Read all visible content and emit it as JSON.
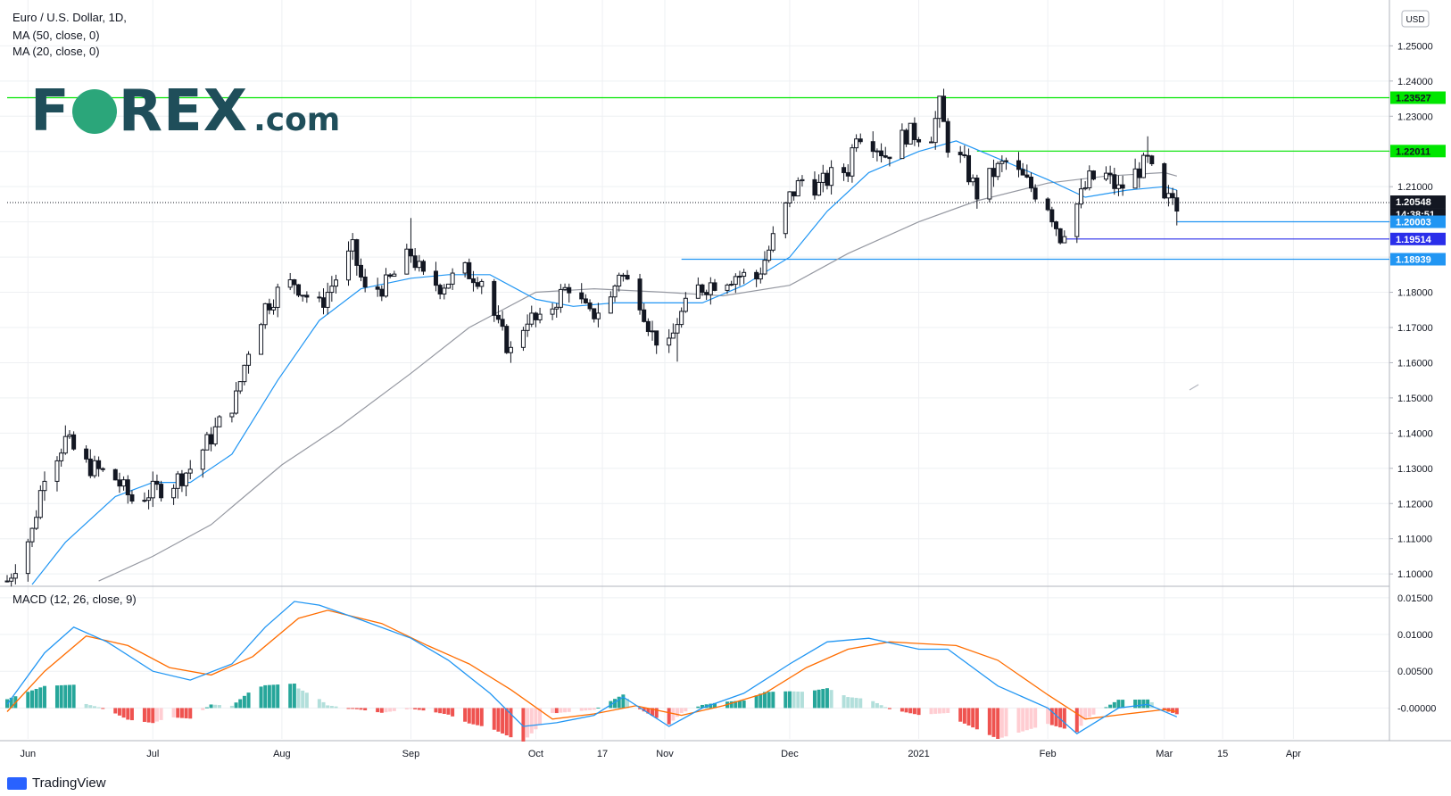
{
  "legend": {
    "title": "Euro / U.S. Dollar, 1D,",
    "ma50": "MA (50, close, 0)",
    "ma20": "MA (20, close, 0)",
    "macd": "MACD (12, 26, close, 9)"
  },
  "logo": {
    "text_left": "F",
    "text_right": "REX",
    "suffix": ".com"
  },
  "currency_badge": "USD",
  "footer": {
    "brand": "TradingView"
  },
  "price_tags": [
    {
      "label": "1.23527",
      "value": 1.23527,
      "color": "#00e600",
      "text_color": "#131722"
    },
    {
      "label": "1.22011",
      "value": 1.22011,
      "color": "#00e600",
      "text_color": "#131722"
    },
    {
      "label": "1.20548",
      "value": 1.20548,
      "color": "#131722",
      "text_color": "#ffffff"
    },
    {
      "label": "14:38:51",
      "value": 1.20548,
      "color": "#131722",
      "text_color": "#ffffff"
    },
    {
      "label": "1.20003",
      "value": 1.20003,
      "color": "#2196f3",
      "text_color": "#ffffff"
    },
    {
      "label": "1.19514",
      "value": 1.19514,
      "color": "#2a2eea",
      "text_color": "#ffffff"
    },
    {
      "label": "1.18939",
      "value": 1.18939,
      "color": "#2196f3",
      "text_color": "#ffffff"
    }
  ],
  "chart_data": {
    "type": "candlestick",
    "instrument": "Euro / U.S. Dollar",
    "timeframe": "1D",
    "y_ticks": [
      "1.25000",
      "1.24000",
      "1.23000",
      "1.22000",
      "1.21000",
      "1.20000",
      "1.19000",
      "1.18000",
      "1.17000",
      "1.16000",
      "1.15000",
      "1.14000",
      "1.13000",
      "1.12000",
      "1.11000",
      "1.10000"
    ],
    "ylim": [
      1.097,
      1.2615
    ],
    "x_ticks": [
      {
        "label": "Jun",
        "date": "2020-06-01"
      },
      {
        "label": "Jul",
        "date": "2020-07-01"
      },
      {
        "label": "Aug",
        "date": "2020-08-01"
      },
      {
        "label": "Sep",
        "date": "2020-09-01"
      },
      {
        "label": "Oct",
        "date": "2020-10-01"
      },
      {
        "label": "17",
        "date": "2020-10-17"
      },
      {
        "label": "Nov",
        "date": "2020-11-01"
      },
      {
        "label": "Dec",
        "date": "2020-12-01"
      },
      {
        "label": "2021",
        "date": "2021-01-01"
      },
      {
        "label": "Feb",
        "date": "2021-02-01"
      },
      {
        "label": "Mar",
        "date": "2021-03-01"
      },
      {
        "label": "15",
        "date": "2021-03-15"
      },
      {
        "label": "Apr",
        "date": "2021-04-01"
      }
    ],
    "xlim": [
      "2020-05-27",
      "2021-04-23"
    ],
    "close_path": [
      [
        "2020-05-27",
        1.098
      ],
      [
        "2020-06-02",
        1.112
      ],
      [
        "2020-06-05",
        1.129
      ],
      [
        "2020-06-10",
        1.138
      ],
      [
        "2020-06-15",
        1.131
      ],
      [
        "2020-06-22",
        1.127
      ],
      [
        "2020-06-26",
        1.121
      ],
      [
        "2020-06-30",
        1.123
      ],
      [
        "2020-07-06",
        1.126
      ],
      [
        "2020-07-10",
        1.13
      ],
      [
        "2020-07-15",
        1.139
      ],
      [
        "2020-07-21",
        1.15
      ],
      [
        "2020-07-24",
        1.164
      ],
      [
        "2020-07-28",
        1.176
      ],
      [
        "2020-07-31",
        1.18
      ],
      [
        "2020-08-04",
        1.183
      ],
      [
        "2020-08-07",
        1.179
      ],
      [
        "2020-08-10",
        1.176
      ],
      [
        "2020-08-14",
        1.184
      ],
      [
        "2020-08-18",
        1.192
      ],
      [
        "2020-08-21",
        1.18
      ],
      [
        "2020-08-26",
        1.182
      ],
      [
        "2020-09-01",
        1.191
      ],
      [
        "2020-09-04",
        1.184
      ],
      [
        "2020-09-08",
        1.182
      ],
      [
        "2020-09-14",
        1.186
      ],
      [
        "2020-09-18",
        1.184
      ],
      [
        "2020-09-22",
        1.17
      ],
      [
        "2020-09-25",
        1.163
      ],
      [
        "2020-09-29",
        1.173
      ],
      [
        "2020-10-02",
        1.171
      ],
      [
        "2020-10-06",
        1.178
      ],
      [
        "2020-10-09",
        1.182
      ],
      [
        "2020-10-14",
        1.173
      ],
      [
        "2020-10-19",
        1.178
      ],
      [
        "2020-10-21",
        1.186
      ],
      [
        "2020-10-26",
        1.178
      ],
      [
        "2020-10-29",
        1.168
      ],
      [
        "2020-11-02",
        1.164
      ],
      [
        "2020-11-04",
        1.172
      ],
      [
        "2020-11-09",
        1.181
      ],
      [
        "2020-11-13",
        1.183
      ],
      [
        "2020-11-18",
        1.185
      ],
      [
        "2020-11-23",
        1.184
      ],
      [
        "2020-11-26",
        1.192
      ],
      [
        "2020-12-01",
        1.207
      ],
      [
        "2020-12-04",
        1.212
      ],
      [
        "2020-12-08",
        1.21
      ],
      [
        "2020-12-11",
        1.213
      ],
      [
        "2020-12-15",
        1.215
      ],
      [
        "2020-12-17",
        1.226
      ],
      [
        "2020-12-21",
        1.223
      ],
      [
        "2020-12-24",
        1.219
      ],
      [
        "2020-12-29",
        1.225
      ],
      [
        "2021-01-04",
        1.225
      ],
      [
        "2021-01-06",
        1.233
      ],
      [
        "2021-01-08",
        1.222
      ],
      [
        "2021-01-12",
        1.216
      ],
      [
        "2021-01-15",
        1.208
      ],
      [
        "2021-01-19",
        1.214
      ],
      [
        "2021-01-22",
        1.217
      ],
      [
        "2021-01-27",
        1.211
      ],
      [
        "2021-02-01",
        1.205
      ],
      [
        "2021-02-04",
        1.196
      ],
      [
        "2021-02-08",
        1.205
      ],
      [
        "2021-02-11",
        1.212
      ],
      [
        "2021-02-15",
        1.213
      ],
      [
        "2021-02-18",
        1.209
      ],
      [
        "2021-02-23",
        1.215
      ],
      [
        "2021-02-25",
        1.217
      ],
      [
        "2021-03-01",
        1.205
      ],
      [
        "2021-03-03",
        1.207
      ],
      [
        "2021-03-04",
        1.2055
      ]
    ],
    "candle_highs_note": "High spikes: 2021-01-06 ~1.2349, 2021-02-25 ~1.2243, 2020-09-01 ~1.2011, 2020-06-10 ~1.1422; lows: 2020-11-04 ~1.1603, 2021-02-05 ~1.1952, 2021-03-04 ~1.1990",
    "ma20_path": [
      [
        "2020-06-02",
        1.097
      ],
      [
        "2020-06-10",
        1.109
      ],
      [
        "2020-06-22",
        1.122
      ],
      [
        "2020-07-01",
        1.126
      ],
      [
        "2020-07-10",
        1.126
      ],
      [
        "2020-07-20",
        1.134
      ],
      [
        "2020-07-31",
        1.155
      ],
      [
        "2020-08-10",
        1.172
      ],
      [
        "2020-08-20",
        1.181
      ],
      [
        "2020-09-01",
        1.184
      ],
      [
        "2020-09-10",
        1.185
      ],
      [
        "2020-09-20",
        1.185
      ],
      [
        "2020-10-01",
        1.178
      ],
      [
        "2020-10-10",
        1.176
      ],
      [
        "2020-10-20",
        1.177
      ],
      [
        "2020-11-01",
        1.177
      ],
      [
        "2020-11-10",
        1.177
      ],
      [
        "2020-11-20",
        1.182
      ],
      [
        "2020-12-01",
        1.19
      ],
      [
        "2020-12-10",
        1.203
      ],
      [
        "2020-12-20",
        1.214
      ],
      [
        "2021-01-01",
        1.22
      ],
      [
        "2021-01-10",
        1.223
      ],
      [
        "2021-01-20",
        1.218
      ],
      [
        "2021-02-01",
        1.212
      ],
      [
        "2021-02-10",
        1.207
      ],
      [
        "2021-02-20",
        1.209
      ],
      [
        "2021-03-01",
        1.21
      ],
      [
        "2021-03-04",
        1.209
      ]
    ],
    "ma50_path": [
      [
        "2020-06-18",
        1.098
      ],
      [
        "2020-07-01",
        1.105
      ],
      [
        "2020-07-15",
        1.114
      ],
      [
        "2020-08-01",
        1.131
      ],
      [
        "2020-08-15",
        1.142
      ],
      [
        "2020-09-01",
        1.157
      ],
      [
        "2020-09-15",
        1.17
      ],
      [
        "2020-10-01",
        1.18
      ],
      [
        "2020-10-15",
        1.181
      ],
      [
        "2020-11-01",
        1.18
      ],
      [
        "2020-11-15",
        1.179
      ],
      [
        "2020-12-01",
        1.182
      ],
      [
        "2020-12-15",
        1.191
      ],
      [
        "2021-01-01",
        1.2
      ],
      [
        "2021-01-15",
        1.206
      ],
      [
        "2021-02-01",
        1.211
      ],
      [
        "2021-02-15",
        1.213
      ],
      [
        "2021-03-01",
        1.214
      ],
      [
        "2021-03-04",
        1.213
      ]
    ],
    "horizontal_levels": [
      {
        "value": 1.23527,
        "color": "#00e600",
        "from": "2020-05-27",
        "to": "2021-04-23"
      },
      {
        "value": 1.22011,
        "color": "#00e600",
        "from": "2021-01-15",
        "to": "2021-04-23"
      },
      {
        "value": 1.20548,
        "color": "#131722",
        "style": "dotted",
        "from": "2020-05-27",
        "to": "2021-04-23"
      },
      {
        "value": 1.20003,
        "color": "#2196f3",
        "from": "2021-03-04",
        "to": "2021-04-23"
      },
      {
        "value": 1.19514,
        "color": "#2a2eea",
        "from": "2021-02-05",
        "to": "2021-04-23"
      },
      {
        "value": 1.18939,
        "color": "#2196f3",
        "from": "2020-11-05",
        "to": "2021-04-23"
      }
    ],
    "macd_panel": {
      "y_ticks": [
        "0.01500",
        "0.01000",
        "0.00500",
        "-0.00000"
      ],
      "ylim": [
        -0.0042,
        0.0162
      ],
      "macd_line": [
        [
          "2020-05-27",
          0.0005
        ],
        [
          "2020-06-05",
          0.0075
        ],
        [
          "2020-06-12",
          0.011
        ],
        [
          "2020-06-20",
          0.009
        ],
        [
          "2020-07-01",
          0.005
        ],
        [
          "2020-07-10",
          0.0038
        ],
        [
          "2020-07-20",
          0.006
        ],
        [
          "2020-07-28",
          0.011
        ],
        [
          "2020-08-04",
          0.0145
        ],
        [
          "2020-08-10",
          0.014
        ],
        [
          "2020-08-20",
          0.012
        ],
        [
          "2020-09-01",
          0.0095
        ],
        [
          "2020-09-10",
          0.0065
        ],
        [
          "2020-09-20",
          0.002
        ],
        [
          "2020-09-28",
          -0.0025
        ],
        [
          "2020-10-06",
          -0.002
        ],
        [
          "2020-10-15",
          -0.001
        ],
        [
          "2020-10-22",
          0.0015
        ],
        [
          "2020-11-02",
          -0.0025
        ],
        [
          "2020-11-10",
          0.0
        ],
        [
          "2020-11-20",
          0.002
        ],
        [
          "2020-12-01",
          0.006
        ],
        [
          "2020-12-10",
          0.009
        ],
        [
          "2020-12-20",
          0.0095
        ],
        [
          "2021-01-01",
          0.008
        ],
        [
          "2021-01-08",
          0.008
        ],
        [
          "2021-01-20",
          0.003
        ],
        [
          "2021-02-01",
          0.0
        ],
        [
          "2021-02-08",
          -0.0035
        ],
        [
          "2021-02-18",
          0.0
        ],
        [
          "2021-02-25",
          0.0005
        ],
        [
          "2021-03-04",
          -0.0012
        ]
      ],
      "signal_line": [
        [
          "2020-05-27",
          -0.0005
        ],
        [
          "2020-06-05",
          0.005
        ],
        [
          "2020-06-15",
          0.0098
        ],
        [
          "2020-06-25",
          0.0085
        ],
        [
          "2020-07-05",
          0.0055
        ],
        [
          "2020-07-15",
          0.0045
        ],
        [
          "2020-07-25",
          0.007
        ],
        [
          "2020-08-05",
          0.0122
        ],
        [
          "2020-08-12",
          0.0133
        ],
        [
          "2020-08-25",
          0.0115
        ],
        [
          "2020-09-05",
          0.0085
        ],
        [
          "2020-09-15",
          0.006
        ],
        [
          "2020-09-25",
          0.0025
        ],
        [
          "2020-10-05",
          -0.0015
        ],
        [
          "2020-10-15",
          -0.0008
        ],
        [
          "2020-10-25",
          0.0003
        ],
        [
          "2020-11-05",
          -0.001
        ],
        [
          "2020-11-15",
          0.0003
        ],
        [
          "2020-11-25",
          0.002
        ],
        [
          "2020-12-05",
          0.0055
        ],
        [
          "2020-12-15",
          0.008
        ],
        [
          "2020-12-25",
          0.009
        ],
        [
          "2021-01-10",
          0.0085
        ],
        [
          "2021-01-20",
          0.0065
        ],
        [
          "2021-02-01",
          0.0018
        ],
        [
          "2021-02-10",
          -0.0015
        ],
        [
          "2021-02-20",
          -0.0008
        ],
        [
          "2021-03-01",
          -0.0002
        ],
        [
          "2021-03-04",
          -0.0005
        ]
      ]
    }
  }
}
